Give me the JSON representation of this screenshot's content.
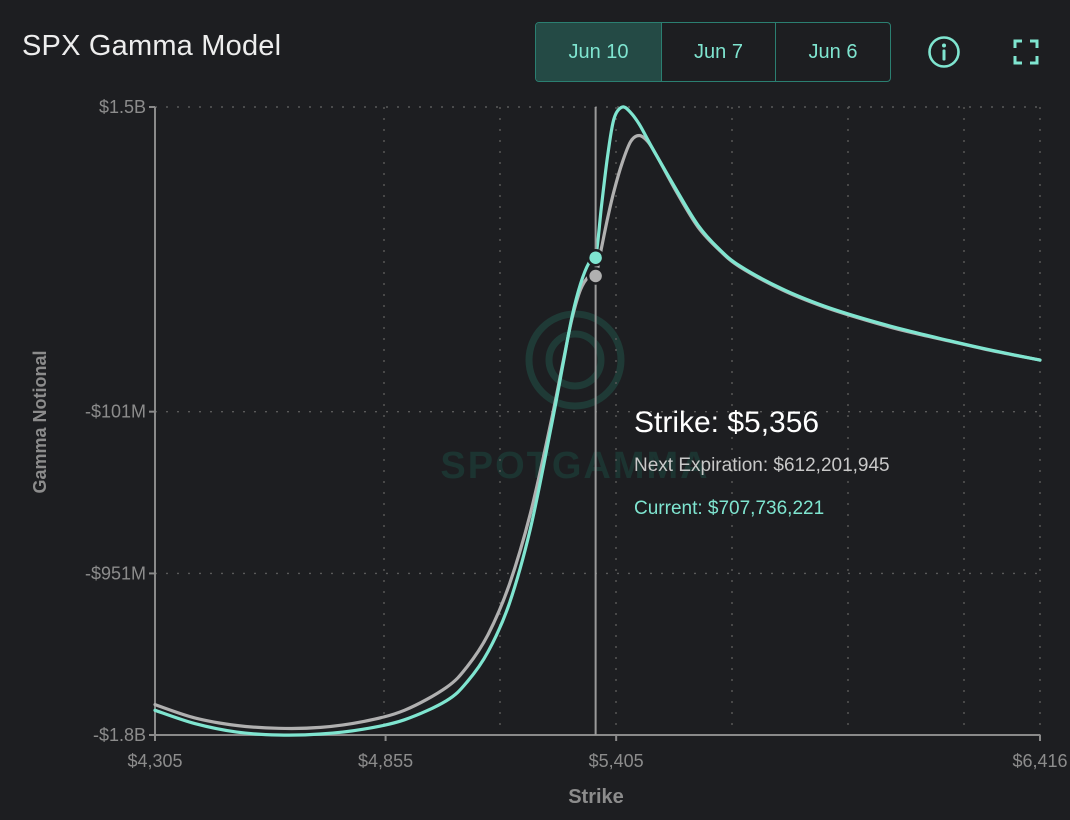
{
  "header": {
    "title": "SPX Gamma Model",
    "tabs": [
      {
        "label": "Jun 10",
        "active": true
      },
      {
        "label": "Jun 7",
        "active": false
      },
      {
        "label": "Jun 6",
        "active": false
      }
    ],
    "info_icon": "info-icon",
    "fullscreen_icon": "fullscreen-icon"
  },
  "tooltip": {
    "strike": "Strike: $5,356",
    "next_expiration": "Next Expiration: $612,201,945",
    "current": "Current: $707,736,221"
  },
  "watermark": "SPOTGAMMA",
  "colors": {
    "accent": "#7fe5d0",
    "next_expiration": "#b0b0b0",
    "background": "#1d1e21"
  },
  "chart_data": {
    "type": "line",
    "xlabel": "Strike",
    "ylabel": "Gamma Notional",
    "xlim": [
      4305,
      6416
    ],
    "ylim": [
      -1800000000,
      1500000000
    ],
    "x_ticks": [
      {
        "value": 4305,
        "label": "$4,305"
      },
      {
        "value": 4855,
        "label": "$4,855"
      },
      {
        "value": 5405,
        "label": "$5,405"
      },
      {
        "value": 6416,
        "label": "$6,416"
      }
    ],
    "y_ticks": [
      {
        "value": 1500000000,
        "label": "$1.5B"
      },
      {
        "value": -101000000,
        "label": "-$101M"
      },
      {
        "value": -951000000,
        "label": "-$951M"
      },
      {
        "value": -1800000000,
        "label": "-$1.8B"
      }
    ],
    "hover_x": 5356,
    "grid": true,
    "series": [
      {
        "name": "Next Expiration",
        "color": "#b0b0b0",
        "x": [
          4305,
          4400,
          4500,
          4600,
          4700,
          4800,
          4900,
          5000,
          5050,
          5100,
          5150,
          5200,
          5250,
          5280,
          5300,
          5320,
          5340,
          5356,
          5370,
          5385,
          5400,
          5420,
          5440,
          5460,
          5480,
          5500,
          5550,
          5600,
          5650,
          5700,
          5800,
          5900,
          6000,
          6100,
          6200,
          6300,
          6416
        ],
        "y": [
          -1640000000,
          -1710000000,
          -1750000000,
          -1765000000,
          -1760000000,
          -1730000000,
          -1670000000,
          -1550000000,
          -1440000000,
          -1270000000,
          -1010000000,
          -640000000,
          -150000000,
          180000000,
          390000000,
          540000000,
          610000000,
          612000000,
          760000000,
          920000000,
          1060000000,
          1210000000,
          1320000000,
          1350000000,
          1320000000,
          1250000000,
          1050000000,
          870000000,
          750000000,
          660000000,
          540000000,
          450000000,
          380000000,
          320000000,
          270000000,
          220000000,
          170000000
        ]
      },
      {
        "name": "Current",
        "color": "#7fe5d0",
        "x": [
          4305,
          4400,
          4500,
          4600,
          4700,
          4800,
          4900,
          5000,
          5050,
          5100,
          5150,
          5200,
          5250,
          5280,
          5300,
          5320,
          5340,
          5356,
          5370,
          5385,
          5400,
          5420,
          5440,
          5460,
          5480,
          5500,
          5550,
          5600,
          5650,
          5700,
          5800,
          5900,
          6000,
          6100,
          6200,
          6300,
          6416
        ],
        "y": [
          -1670000000,
          -1740000000,
          -1785000000,
          -1800000000,
          -1795000000,
          -1770000000,
          -1720000000,
          -1620000000,
          -1520000000,
          -1360000000,
          -1110000000,
          -720000000,
          -180000000,
          170000000,
          400000000,
          570000000,
          680000000,
          708000000,
          980000000,
          1250000000,
          1440000000,
          1500000000,
          1470000000,
          1410000000,
          1330000000,
          1250000000,
          1060000000,
          880000000,
          755000000,
          665000000,
          545000000,
          455000000,
          385000000,
          325000000,
          272000000,
          222000000,
          170000000
        ]
      }
    ]
  }
}
